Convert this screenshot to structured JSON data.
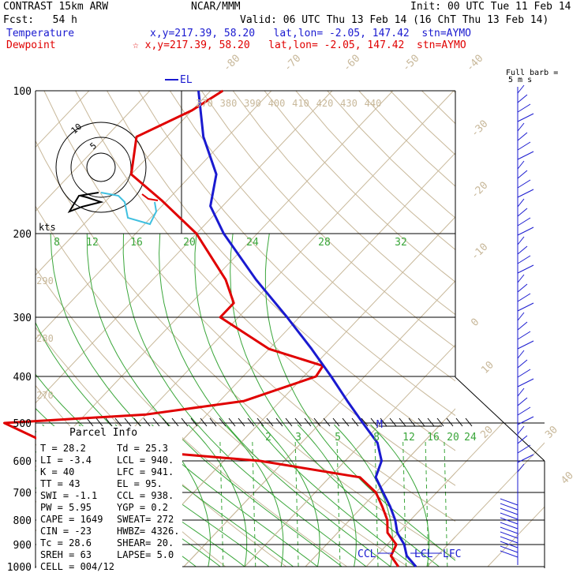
{
  "header": {
    "model": "CONTRAST 15km ARW",
    "center": "NCAR/MMM",
    "init": "Init: 00 UTC Tue 11 Feb 14",
    "fcst": "Fcst:   54 h",
    "valid": "Valid: 06 UTC Thu 13 Feb 14 (16 ChT Thu 13 Feb 14)",
    "temperature_label": "Temperature",
    "temperature_loc": "x,y=217.39, 58.20   lat,lon= -2.05, 147.42  stn=AYMO",
    "dewpoint_label": "Dewpoint",
    "dewpoint_loc": "☆ x,y=217.39, 58.20   lat,lon= -2.05, 147.42  stn=AYMO"
  },
  "colors": {
    "temperature": "#1a1ad0",
    "dewpoint": "#e00000",
    "isotherm": "#c8b89a",
    "mixing_ratio": "#3aa63a",
    "barb": "#1a1ad0",
    "hodograph_cyan": "#40c0e0"
  },
  "chart_data": {
    "type": "skew-t",
    "pressure_levels": [
      100,
      200,
      300,
      400,
      500,
      600,
      700,
      800,
      900,
      1000
    ],
    "temperature_labels": [
      "-80",
      "-70",
      "-60",
      "-50",
      "-40",
      "-30",
      "-20",
      "-10",
      "0",
      "10",
      "20",
      "30",
      "40"
    ],
    "theta_labels": [
      "370",
      "380",
      "390",
      "400",
      "410",
      "420",
      "430",
      "440"
    ],
    "theta_left_labels": [
      "290",
      "280",
      "270"
    ],
    "mixing_ratio_upper": [
      "8",
      "12",
      "16",
      "20",
      "24",
      "28",
      "32"
    ],
    "mixing_ratio_lower": [
      "2",
      "3",
      "5",
      "8",
      "12",
      "16",
      "20",
      "24"
    ],
    "el_label": "EL",
    "ccl_label": "CCL",
    "lcl_label": "LCL",
    "lfc_label": "LFC",
    "m_label": "M",
    "kts_label": "kts",
    "full_barb_label": "Full barb =",
    "full_barb_value": "5 m s",
    "hodo_ring_labels": [
      "10",
      "5"
    ],
    "temperature_profile": [
      [
        1000,
        28.2
      ],
      [
        950,
        25.0
      ],
      [
        900,
        22.8
      ],
      [
        850,
        19.8
      ],
      [
        800,
        17.5
      ],
      [
        750,
        14.6
      ],
      [
        700,
        11.2
      ],
      [
        650,
        7.6
      ],
      [
        600,
        6.0
      ],
      [
        550,
        2.5
      ],
      [
        500,
        -3.0
      ],
      [
        450,
        -9.0
      ],
      [
        400,
        -15.5
      ],
      [
        350,
        -23.0
      ],
      [
        300,
        -32.0
      ],
      [
        250,
        -43.0
      ],
      [
        200,
        -55.5
      ],
      [
        175,
        -62.0
      ],
      [
        150,
        -66.0
      ],
      [
        125,
        -74.0
      ],
      [
        100,
        -82.0
      ]
    ],
    "dewpoint_profile": [
      [
        1000,
        25.3
      ],
      [
        950,
        22.4
      ],
      [
        900,
        21.5
      ],
      [
        850,
        18.2
      ],
      [
        800,
        16.2
      ],
      [
        750,
        13.3
      ],
      [
        700,
        10.0
      ],
      [
        650,
        5.0
      ],
      [
        600,
        -14.0
      ],
      [
        550,
        -52.0
      ],
      [
        500,
        -62.0
      ],
      [
        480,
        -40.0
      ],
      [
        450,
        -26.0
      ],
      [
        400,
        -18.0
      ],
      [
        380,
        -18.5
      ],
      [
        350,
        -30.0
      ],
      [
        300,
        -43.0
      ],
      [
        280,
        -43.0
      ],
      [
        250,
        -48.0
      ],
      [
        200,
        -60.0
      ],
      [
        170,
        -71.0
      ],
      [
        150,
        -80.0
      ],
      [
        125,
        -85.0
      ],
      [
        110,
        -80.0
      ],
      [
        100,
        -78.0
      ]
    ],
    "parcel_info": {
      "title": "Parcel Info",
      "rows": [
        [
          "T  =   28.2",
          "Td =  25.3"
        ],
        [
          "LI =   -3.4",
          "LCL =  940."
        ],
        [
          "K  =     40",
          "LFC =  941."
        ],
        [
          "TT =     43",
          "EL =    95."
        ],
        [
          "SWI =  -1.1",
          "CCL =  938."
        ],
        [
          "PW =   5.95",
          "YGP =   0.2"
        ],
        [
          "CAPE =  1649",
          "SWEAT=  272"
        ],
        [
          "CIN =    -23",
          "HWBZ= 4326."
        ],
        [
          "Tc =   28.6",
          "SHEAR=  20."
        ],
        [
          "SREH =    63",
          "LAPSE=  5.0"
        ],
        [
          "CELL = 004/12",
          ""
        ]
      ]
    }
  }
}
